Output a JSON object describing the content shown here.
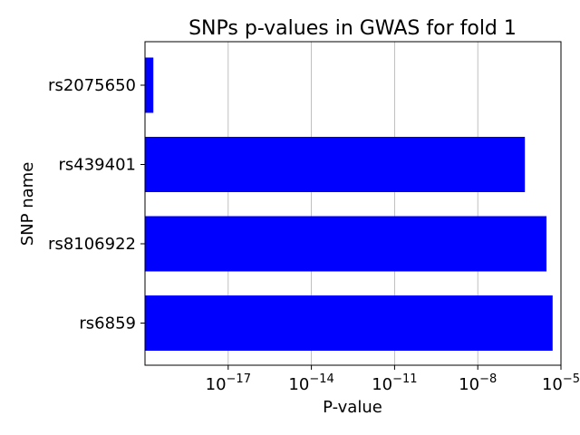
{
  "chart_data": {
    "type": "bar",
    "orientation": "horizontal",
    "title": "SNPs p-values in GWAS for fold 1",
    "xlabel": "P-value",
    "ylabel": "SNP name",
    "x_scale": "log",
    "xlim": [
      1e-20,
      1e-05
    ],
    "x_ticks": [
      1e-17,
      1e-14,
      1e-11,
      1e-08,
      1e-05
    ],
    "x_tick_labels": [
      {
        "base": "10",
        "exp": "−17"
      },
      {
        "base": "10",
        "exp": "−14"
      },
      {
        "base": "10",
        "exp": "−11"
      },
      {
        "base": "10",
        "exp": "−8"
      },
      {
        "base": "10",
        "exp": "−5"
      }
    ],
    "grid": "vertical",
    "bar_color": "#0000ff",
    "categories": [
      "rs6859",
      "rs8106922",
      "rs439401",
      "rs2075650"
    ],
    "values": [
      5e-06,
      3e-06,
      5e-07,
      2e-20
    ]
  }
}
